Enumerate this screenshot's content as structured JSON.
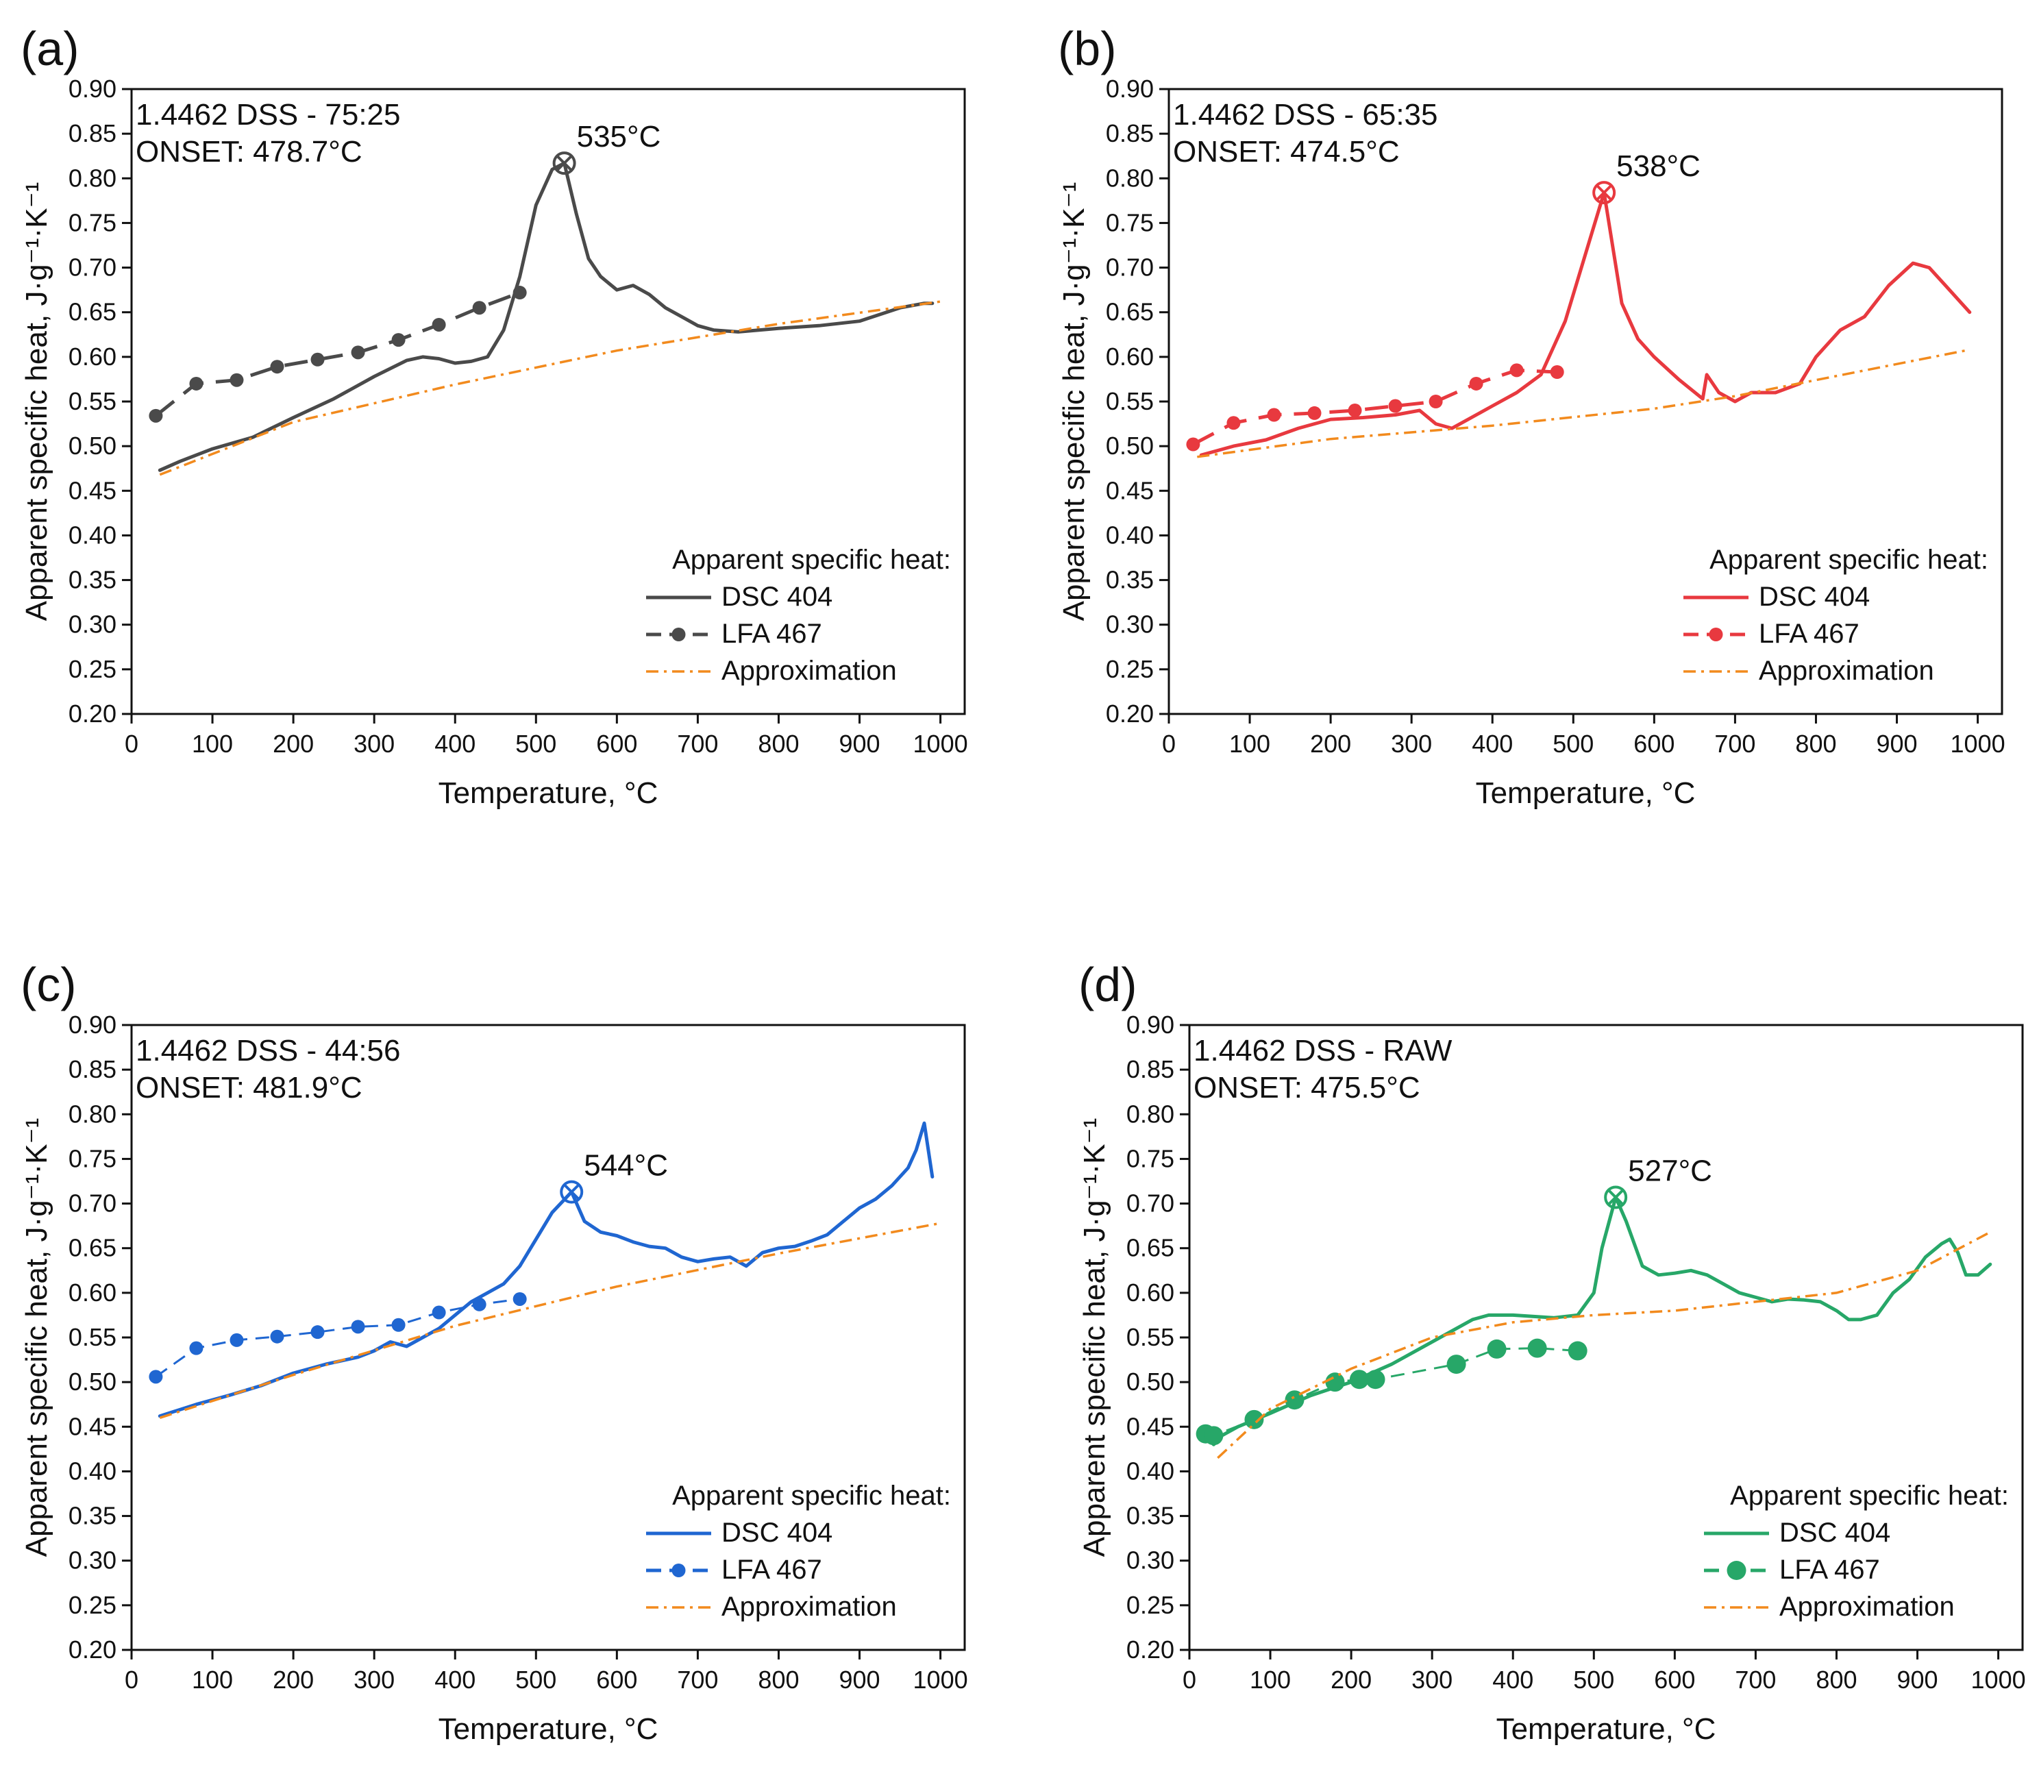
{
  "figure": {
    "panels": [
      {
        "letter": "(a)",
        "info_line1": "1.4462 DSS - 75:25",
        "info_line2": "ONSET: 478.7°C",
        "peak_label": "535°C",
        "legend_title": "Apparent specific heat:",
        "legend_dsc": "DSC 404",
        "legend_lfa": "LFA 467",
        "legend_approx": "Approximation",
        "color": "#4a4a4a"
      },
      {
        "letter": "(b)",
        "info_line1": "1.4462 DSS - 65:35",
        "info_line2": "ONSET: 474.5°C",
        "peak_label": "538°C",
        "legend_title": "Apparent specific heat:",
        "legend_dsc": "DSC 404",
        "legend_lfa": "LFA 467",
        "legend_approx": "Approximation",
        "color": "#e8393f"
      },
      {
        "letter": "(c)",
        "info_line1": "1.4462 DSS - 44:56",
        "info_line2": "ONSET: 481.9°C",
        "peak_label": "544°C",
        "legend_title": "Apparent specific heat:",
        "legend_dsc": "DSC 404",
        "legend_lfa": "LFA 467",
        "legend_approx": "Approximation",
        "color": "#1f66d1"
      },
      {
        "letter": "(d)",
        "info_line1": "1.4462 DSS - RAW",
        "info_line2": "ONSET: 475.5°C",
        "peak_label": "527°C",
        "legend_title": "Apparent specific heat:",
        "legend_dsc": "DSC 404",
        "legend_lfa": "LFA 467",
        "legend_approx": "Approximation",
        "color": "#27a768"
      }
    ]
  },
  "chart_data": [
    {
      "type": "line",
      "panel": "(a)",
      "title": "1.4462 DSS - 75:25",
      "xlabel": "Temperature, °C",
      "ylabel": "Apparent specific heat, J·g⁻¹·K⁻¹",
      "xlim": [
        0,
        1030
      ],
      "ylim": [
        0.2,
        0.9
      ],
      "x_ticks": [
        0,
        100,
        200,
        300,
        400,
        500,
        600,
        700,
        800,
        900,
        1000
      ],
      "y_ticks": [
        0.2,
        0.25,
        0.3,
        0.35,
        0.4,
        0.45,
        0.5,
        0.55,
        0.6,
        0.65,
        0.7,
        0.75,
        0.8,
        0.85,
        0.9
      ],
      "approx_color": "#f28a1d",
      "legend_position": "bottom-right",
      "peak": {
        "x": 535,
        "y": 0.817,
        "label": "535°C"
      },
      "series": [
        {
          "name": "DSC 404",
          "style": "solid",
          "x": [
            35,
            60,
            100,
            150,
            200,
            250,
            300,
            340,
            360,
            380,
            400,
            420,
            440,
            460,
            480,
            500,
            520,
            535,
            550,
            565,
            580,
            600,
            620,
            640,
            660,
            680,
            700,
            720,
            750,
            800,
            850,
            900,
            950,
            980,
            990
          ],
          "y": [
            0.473,
            0.483,
            0.497,
            0.51,
            0.532,
            0.553,
            0.578,
            0.596,
            0.6,
            0.598,
            0.593,
            0.595,
            0.6,
            0.63,
            0.69,
            0.77,
            0.81,
            0.817,
            0.76,
            0.71,
            0.69,
            0.675,
            0.68,
            0.67,
            0.655,
            0.645,
            0.635,
            0.63,
            0.628,
            0.632,
            0.635,
            0.64,
            0.655,
            0.66,
            0.66
          ]
        },
        {
          "name": "LFA 467",
          "style": "dashed-markers",
          "x": [
            30,
            80,
            130,
            180,
            230,
            280,
            330,
            380,
            430,
            480
          ],
          "y": [
            0.534,
            0.57,
            0.574,
            0.589,
            0.597,
            0.605,
            0.619,
            0.636,
            0.655,
            0.672
          ]
        },
        {
          "name": "Approximation",
          "style": "dashdot",
          "x": [
            35,
            200,
            400,
            600,
            800,
            1000
          ],
          "y": [
            0.468,
            0.527,
            0.569,
            0.607,
            0.637,
            0.662
          ]
        }
      ]
    },
    {
      "type": "line",
      "panel": "(b)",
      "title": "1.4462 DSS - 65:35",
      "xlabel": "Temperature, °C",
      "ylabel": "Apparent specific heat, J·g⁻¹·K⁻¹",
      "xlim": [
        0,
        1030
      ],
      "ylim": [
        0.2,
        0.9
      ],
      "x_ticks": [
        0,
        100,
        200,
        300,
        400,
        500,
        600,
        700,
        800,
        900,
        1000
      ],
      "y_ticks": [
        0.2,
        0.25,
        0.3,
        0.35,
        0.4,
        0.45,
        0.5,
        0.55,
        0.6,
        0.65,
        0.7,
        0.75,
        0.8,
        0.85,
        0.9
      ],
      "approx_color": "#f28a1d",
      "legend_position": "bottom-right",
      "peak": {
        "x": 538,
        "y": 0.784,
        "label": "538°C"
      },
      "series": [
        {
          "name": "DSC 404",
          "style": "solid",
          "x": [
            40,
            80,
            120,
            160,
            200,
            240,
            280,
            310,
            330,
            350,
            370,
            400,
            430,
            460,
            490,
            520,
            538,
            560,
            580,
            600,
            630,
            660,
            665,
            680,
            700,
            720,
            750,
            780,
            800,
            830,
            860,
            890,
            920,
            940,
            960,
            980,
            990
          ],
          "y": [
            0.49,
            0.5,
            0.507,
            0.52,
            0.53,
            0.532,
            0.535,
            0.54,
            0.525,
            0.52,
            0.53,
            0.545,
            0.56,
            0.58,
            0.64,
            0.73,
            0.784,
            0.66,
            0.62,
            0.6,
            0.575,
            0.553,
            0.58,
            0.56,
            0.55,
            0.56,
            0.56,
            0.57,
            0.6,
            0.63,
            0.645,
            0.68,
            0.705,
            0.7,
            0.68,
            0.66,
            0.65
          ]
        },
        {
          "name": "LFA 467",
          "style": "dashed-markers",
          "x": [
            30,
            80,
            130,
            180,
            230,
            280,
            330,
            380,
            430,
            480
          ],
          "y": [
            0.502,
            0.526,
            0.535,
            0.537,
            0.54,
            0.545,
            0.55,
            0.57,
            0.585,
            0.583
          ]
        },
        {
          "name": "Approximation",
          "style": "dashdot",
          "x": [
            35,
            200,
            400,
            600,
            700,
            800,
            900,
            990
          ],
          "y": [
            0.488,
            0.508,
            0.523,
            0.542,
            0.556,
            0.574,
            0.592,
            0.608
          ]
        }
      ]
    },
    {
      "type": "line",
      "panel": "(c)",
      "title": "1.4462 DSS - 44:56",
      "xlabel": "Temperature, °C",
      "ylabel": "Apparent specific heat, J·g⁻¹·K⁻¹",
      "xlim": [
        0,
        1030
      ],
      "ylim": [
        0.2,
        0.9
      ],
      "x_ticks": [
        0,
        100,
        200,
        300,
        400,
        500,
        600,
        700,
        800,
        900,
        1000
      ],
      "y_ticks": [
        0.2,
        0.25,
        0.3,
        0.35,
        0.4,
        0.45,
        0.5,
        0.55,
        0.6,
        0.65,
        0.7,
        0.75,
        0.8,
        0.85,
        0.9
      ],
      "approx_color": "#f28a1d",
      "legend_position": "bottom-right",
      "peak": {
        "x": 544,
        "y": 0.713,
        "label": "544°C"
      },
      "series": [
        {
          "name": "DSC 404",
          "style": "solid",
          "x": [
            35,
            80,
            120,
            160,
            200,
            240,
            280,
            300,
            320,
            340,
            360,
            380,
            400,
            420,
            440,
            460,
            480,
            500,
            520,
            544,
            560,
            580,
            600,
            620,
            640,
            660,
            680,
            700,
            720,
            740,
            760,
            780,
            800,
            820,
            840,
            860,
            880,
            900,
            920,
            940,
            960,
            970,
            980,
            990
          ],
          "y": [
            0.462,
            0.475,
            0.485,
            0.496,
            0.51,
            0.52,
            0.528,
            0.535,
            0.545,
            0.54,
            0.55,
            0.56,
            0.575,
            0.59,
            0.6,
            0.61,
            0.63,
            0.66,
            0.69,
            0.713,
            0.68,
            0.668,
            0.664,
            0.657,
            0.652,
            0.65,
            0.64,
            0.635,
            0.638,
            0.64,
            0.63,
            0.645,
            0.65,
            0.652,
            0.658,
            0.665,
            0.68,
            0.695,
            0.705,
            0.72,
            0.74,
            0.76,
            0.79,
            0.73
          ]
        },
        {
          "name": "LFA 467",
          "style": "dashed-markers",
          "x": [
            30,
            80,
            130,
            180,
            230,
            280,
            330,
            380,
            430,
            480
          ],
          "y": [
            0.506,
            0.538,
            0.547,
            0.551,
            0.556,
            0.562,
            0.564,
            0.578,
            0.587,
            0.593
          ]
        },
        {
          "name": "Approximation",
          "style": "dashdot",
          "x": [
            35,
            200,
            400,
            600,
            800,
            1000
          ],
          "y": [
            0.46,
            0.508,
            0.563,
            0.607,
            0.644,
            0.678
          ]
        }
      ]
    },
    {
      "type": "line",
      "panel": "(d)",
      "title": "1.4462 DSS - RAW",
      "xlabel": "Temperature, °C",
      "ylabel": "Apparent specific heat, J·g⁻¹·K⁻¹",
      "xlim": [
        0,
        1030
      ],
      "ylim": [
        0.2,
        0.9
      ],
      "x_ticks": [
        0,
        100,
        200,
        300,
        400,
        500,
        600,
        700,
        800,
        900,
        1000
      ],
      "y_ticks": [
        0.2,
        0.25,
        0.3,
        0.35,
        0.4,
        0.45,
        0.5,
        0.55,
        0.6,
        0.65,
        0.7,
        0.75,
        0.8,
        0.85,
        0.9
      ],
      "approx_color": "#f28a1d",
      "legend_position": "bottom-right",
      "peak": {
        "x": 527,
        "y": 0.707,
        "label": "527°C"
      },
      "series": [
        {
          "name": "DSC 404",
          "style": "solid",
          "x": [
            20,
            30,
            40,
            60,
            100,
            150,
            200,
            250,
            300,
            350,
            370,
            400,
            450,
            480,
            500,
            510,
            527,
            540,
            560,
            580,
            600,
            620,
            640,
            660,
            680,
            700,
            720,
            740,
            760,
            780,
            800,
            815,
            830,
            850,
            870,
            890,
            910,
            930,
            940,
            950,
            960,
            975,
            990
          ],
          "y": [
            0.44,
            0.43,
            0.44,
            0.45,
            0.465,
            0.485,
            0.5,
            0.52,
            0.545,
            0.57,
            0.575,
            0.575,
            0.572,
            0.575,
            0.6,
            0.65,
            0.707,
            0.68,
            0.63,
            0.62,
            0.622,
            0.625,
            0.62,
            0.61,
            0.6,
            0.595,
            0.59,
            0.593,
            0.592,
            0.59,
            0.58,
            0.57,
            0.57,
            0.575,
            0.6,
            0.615,
            0.64,
            0.655,
            0.66,
            0.645,
            0.62,
            0.62,
            0.632
          ]
        },
        {
          "name": "LFA 467",
          "style": "dashed-markers",
          "x": [
            20,
            30,
            80,
            130,
            180,
            210,
            230,
            330,
            380,
            430,
            480
          ],
          "y": [
            0.442,
            0.44,
            0.458,
            0.48,
            0.5,
            0.503,
            0.503,
            0.52,
            0.537,
            0.538,
            0.535
          ]
        },
        {
          "name": "Approximation",
          "style": "dashdot",
          "x": [
            35,
            100,
            200,
            300,
            400,
            500,
            600,
            700,
            800,
            900,
            990
          ],
          "y": [
            0.415,
            0.47,
            0.515,
            0.55,
            0.567,
            0.575,
            0.58,
            0.59,
            0.6,
            0.625,
            0.668
          ]
        }
      ]
    }
  ]
}
